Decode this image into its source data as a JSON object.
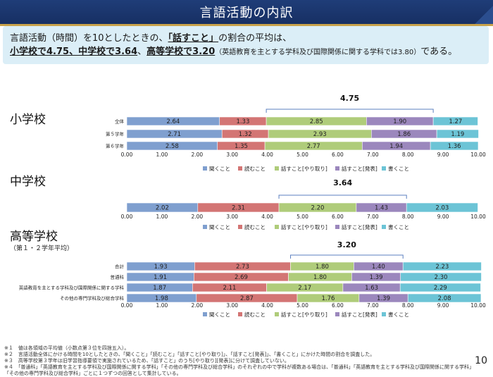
{
  "header": {
    "title": "言語活動の内訳"
  },
  "summary": {
    "line1_a": "言語活動（時間）を10としたときの、",
    "line1_b": "「話すこと」",
    "line1_c": "の割合の平均は、",
    "line2_a": "小学校で4.75、中学校で3.64",
    "line2_b": "、",
    "line2_c": "高等学校で3.20",
    "line2_d": "（英語教育を主とする学科及び国際関係に関する学科では3.80）",
    "line2_e": "である。"
  },
  "colors": {
    "listening": "#7f9fcf",
    "reading": "#d37574",
    "speaking_interaction": "#afcc7a",
    "speaking_presentation": "#9b87bd",
    "writing": "#6cc4d6",
    "bracket": "#5b7fbf"
  },
  "chart_data": [
    {
      "type": "bar",
      "orientation": "horizontal",
      "stacked": true,
      "title": "小学校",
      "categories": [
        "全体",
        "第５学年",
        "第６学年"
      ],
      "series": [
        {
          "name": "聞くこと",
          "values": [
            2.64,
            2.71,
            2.58
          ]
        },
        {
          "name": "読むこと",
          "values": [
            1.33,
            1.32,
            1.35
          ]
        },
        {
          "name": "話すこと[やり取り]",
          "values": [
            2.85,
            2.93,
            2.77
          ]
        },
        {
          "name": "話すこと[発表]",
          "values": [
            1.9,
            1.86,
            1.94
          ]
        },
        {
          "name": "書くこと",
          "values": [
            1.27,
            1.19,
            1.36
          ]
        }
      ],
      "bracket_label": "4.75",
      "xlim": [
        0,
        10
      ],
      "xticks": [
        "0.00",
        "1.00",
        "2.00",
        "3.00",
        "4.00",
        "5.00",
        "6.00",
        "7.00",
        "8.00",
        "9.00",
        "10.00"
      ],
      "legend": "bottom",
      "grid": false
    },
    {
      "type": "bar",
      "orientation": "horizontal",
      "stacked": true,
      "title": "中学校",
      "categories": [
        ""
      ],
      "series": [
        {
          "name": "聞くこと",
          "values": [
            2.02
          ]
        },
        {
          "name": "読むこと",
          "values": [
            2.31
          ]
        },
        {
          "name": "話すこと[やり取り]",
          "values": [
            2.2
          ]
        },
        {
          "name": "話すこと[発表]",
          "values": [
            1.43
          ]
        },
        {
          "name": "書くこと",
          "values": [
            2.03
          ]
        }
      ],
      "bracket_label": "3.64",
      "xlim": [
        0,
        10
      ],
      "xticks": [
        "0.00",
        "1.00",
        "2.00",
        "3.00",
        "4.00",
        "5.00",
        "6.00",
        "7.00",
        "8.00",
        "9.00",
        "10.00"
      ],
      "legend": "bottom",
      "grid": false
    },
    {
      "type": "bar",
      "orientation": "horizontal",
      "stacked": true,
      "title": "高等学校",
      "subtitle": "（第１・２学年平均）",
      "categories": [
        "合計",
        "普通科",
        "英語教育を主とする学科及び国際関係に関する学科",
        "その他の専門学科及び総合学科"
      ],
      "series": [
        {
          "name": "聞くこと",
          "values": [
            1.93,
            1.91,
            1.87,
            1.98
          ]
        },
        {
          "name": "読むこと",
          "values": [
            2.73,
            2.69,
            2.11,
            2.87
          ]
        },
        {
          "name": "話すこと[やり取り]",
          "values": [
            1.8,
            1.8,
            2.17,
            1.76
          ]
        },
        {
          "name": "話すこと[発表]",
          "values": [
            1.4,
            1.39,
            1.63,
            1.39
          ]
        },
        {
          "name": "書くこと",
          "values": [
            2.23,
            2.3,
            2.29,
            2.08
          ]
        }
      ],
      "bracket_label": "3.20",
      "xlim": [
        0,
        10
      ],
      "xticks": [
        "0.00",
        "1.00",
        "2.00",
        "3.00",
        "4.00",
        "5.00",
        "6.00",
        "7.00",
        "8.00",
        "9.00",
        "10.00"
      ],
      "legend": "bottom",
      "grid": false
    }
  ],
  "footnotes": [
    "※１　値は各領域の平均値（小数点第３位を四捨五入）。",
    "※２　言語活動全体にかける時間を10としたときの、「聞くこと」「読むこと」「話すこと[やり取り]」、「話すこと[発表]」、「書くこと」にかけた時間の割合を調査した。",
    "※３　高等学校第３学年は旧学習指導要領で実施されているため、「話すこと」のうち[やり取り][発表]に分けて調査していない。",
    "※４　「普通科」「英語教育を主とする学科及び国際関係に関する学科」「その他の専門学科及び総合学科」のそれぞれの中で学科が複数ある場合は、「普通科」「英語教育を主とする学科及び国際関係に関する学科」",
    "「その他の専門学科及び総合学科」ごとに１つずつの回答として集計している。"
  ],
  "page_number": "10"
}
